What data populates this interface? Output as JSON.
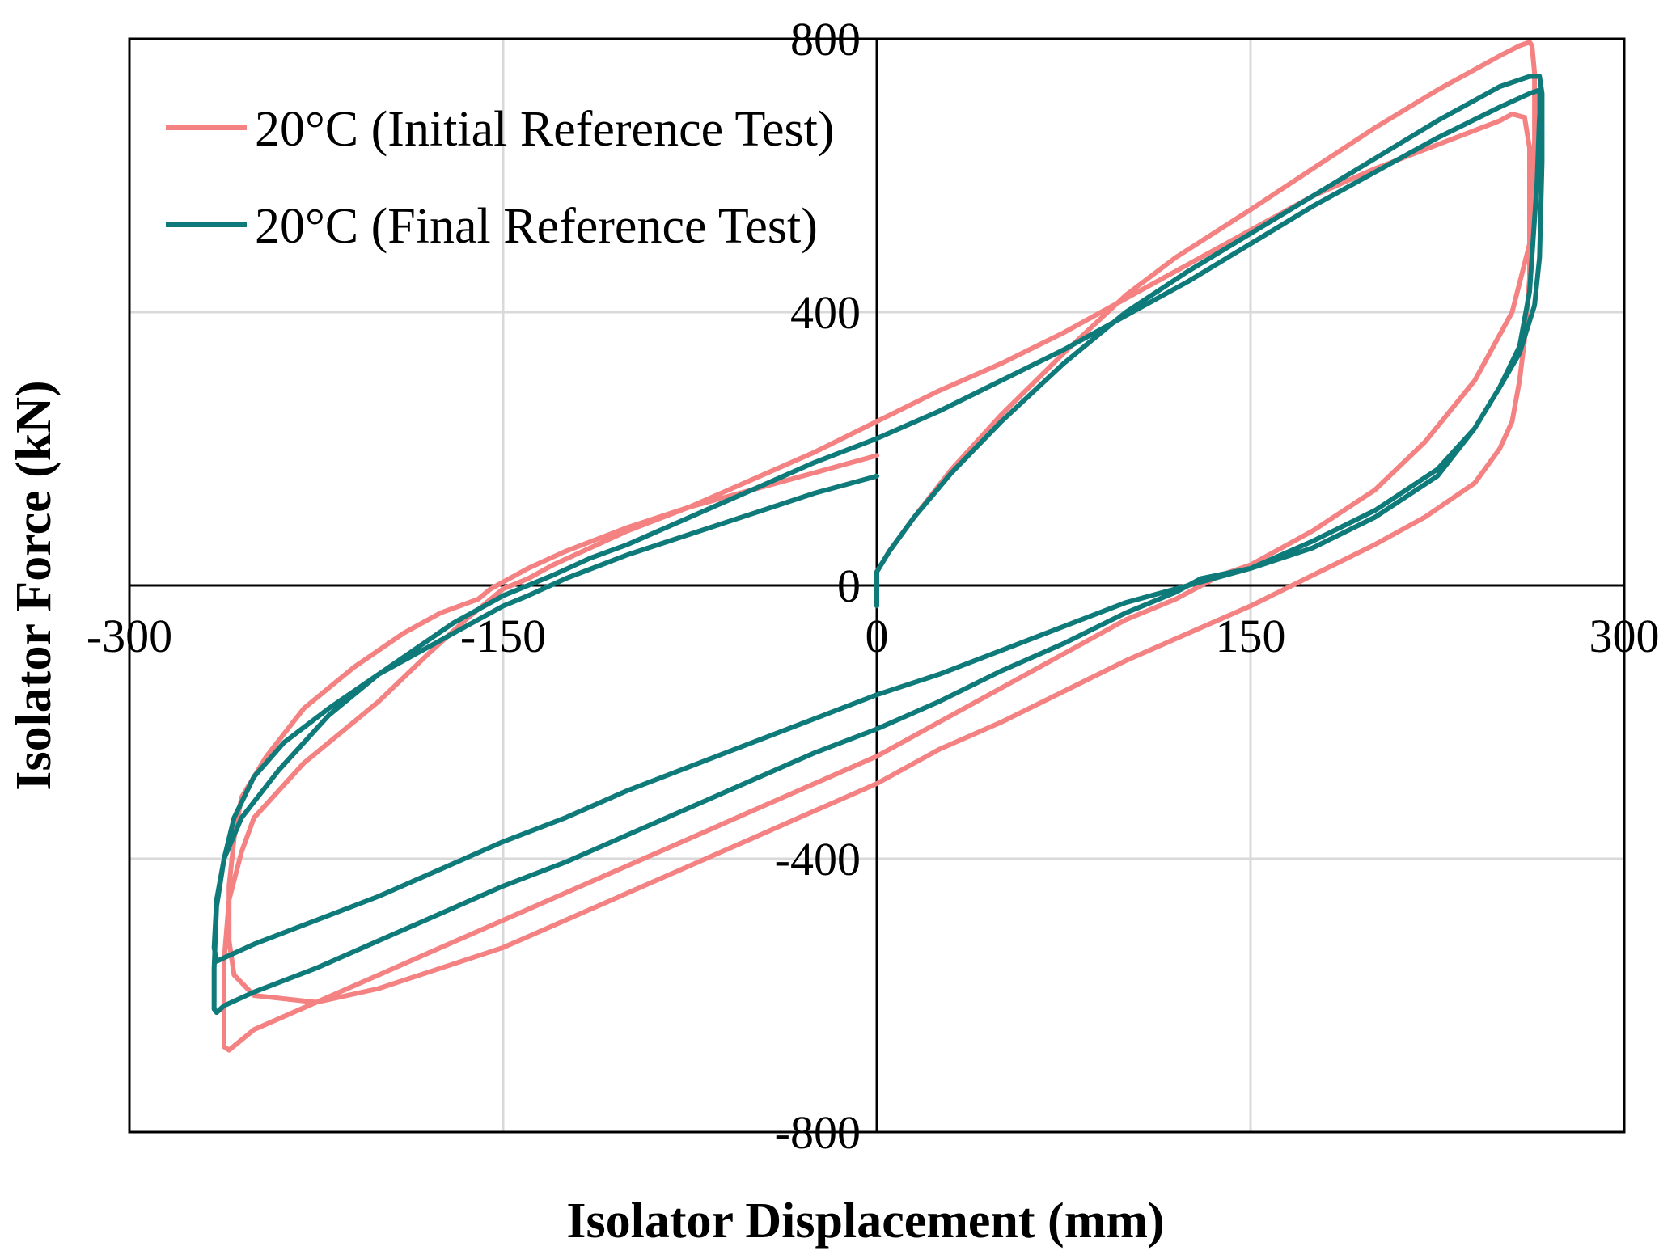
{
  "chart_data": {
    "type": "line",
    "title": "",
    "xlabel": "Isolator Displacement (mm)",
    "ylabel": "Isolator Force (kN)",
    "xlim": [
      -300,
      300
    ],
    "ylim": [
      -800,
      800
    ],
    "xticks": [
      "-300",
      "-150",
      "0",
      "150",
      "300"
    ],
    "xtick_values": [
      -300,
      -150,
      0,
      150,
      300
    ],
    "yticks": [
      "800",
      "400",
      "0",
      "-400",
      "-800"
    ],
    "ytick_values": [
      800,
      400,
      0,
      -400,
      -800
    ],
    "grid": true,
    "legend_position": "top-left",
    "series": [
      {
        "name": "20°C (Initial Reference Test)",
        "color": "#f58282",
        "x": [
          0,
          0,
          5,
          15,
          30,
          50,
          75,
          100,
          120,
          150,
          175,
          200,
          225,
          250,
          258,
          262,
          263,
          264,
          264,
          262,
          255,
          240,
          220,
          200,
          175,
          150,
          138,
          120,
          100,
          75,
          50,
          25,
          0,
          -25,
          -50,
          -75,
          -100,
          -125,
          -150,
          -175,
          -200,
          -225,
          -250,
          -260,
          -262,
          -262,
          -262,
          -260,
          -255,
          -250,
          -230,
          -200,
          -180,
          -165,
          -155,
          -150,
          -140,
          -130,
          -115,
          -100,
          -75,
          -50,
          -25,
          0,
          25,
          50,
          75,
          100,
          125,
          150,
          175,
          200,
          225,
          250,
          255,
          260,
          262,
          262,
          262,
          260,
          258,
          255,
          250,
          240,
          220,
          200,
          175,
          150,
          125,
          100,
          75,
          50,
          25,
          0,
          -25,
          -50,
          -75,
          -100,
          -125,
          -150,
          -175,
          -200,
          -225,
          -250,
          -258,
          -260,
          -260,
          -258,
          -255,
          -245,
          -230,
          -210,
          -190,
          -175,
          -160,
          -155,
          -150,
          -140,
          -125,
          -100,
          -75,
          -50,
          -25,
          0
        ],
        "y": [
          -20,
          20,
          50,
          100,
          170,
          250,
          340,
          425,
          480,
          550,
          610,
          670,
          725,
          775,
          790,
          795,
          790,
          750,
          650,
          500,
          400,
          300,
          210,
          140,
          80,
          30,
          15,
          -20,
          -50,
          -100,
          -150,
          -200,
          -250,
          -290,
          -330,
          -370,
          -410,
          -450,
          -490,
          -530,
          -570,
          -610,
          -650,
          -680,
          -675,
          -640,
          -550,
          -460,
          -390,
          -340,
          -260,
          -170,
          -100,
          -50,
          -20,
          -5,
          10,
          30,
          55,
          80,
          115,
          155,
          195,
          240,
          285,
          325,
          370,
          420,
          470,
          520,
          570,
          610,
          645,
          680,
          690,
          685,
          640,
          560,
          450,
          360,
          300,
          240,
          200,
          150,
          100,
          60,
          15,
          -30,
          -70,
          -110,
          -155,
          -200,
          -240,
          -290,
          -330,
          -370,
          -410,
          -450,
          -490,
          -530,
          -560,
          -590,
          -610,
          -600,
          -570,
          -520,
          -440,
          -370,
          -310,
          -250,
          -180,
          -120,
          -70,
          -40,
          -20,
          -5,
          5,
          25,
          50,
          85,
          115,
          140,
          165,
          190
        ]
      },
      {
        "name": "20°C (Final Reference Test)",
        "color": "#0f7a7a",
        "x": [
          0,
          0,
          5,
          15,
          30,
          50,
          75,
          100,
          125,
          150,
          175,
          200,
          225,
          250,
          262,
          266,
          267,
          267,
          266,
          264,
          258,
          250,
          240,
          225,
          200,
          175,
          150,
          130,
          120,
          100,
          75,
          50,
          25,
          0,
          -25,
          -50,
          -75,
          -100,
          -125,
          -150,
          -175,
          -200,
          -225,
          -250,
          -262,
          -265,
          -266,
          -266,
          -265,
          -262,
          -255,
          -240,
          -220,
          -200,
          -180,
          -170,
          -160,
          -150,
          -140,
          -130,
          -115,
          -100,
          -75,
          -50,
          -25,
          0,
          25,
          50,
          75,
          100,
          125,
          150,
          175,
          200,
          225,
          250,
          262,
          266,
          266,
          265,
          262,
          258,
          250,
          240,
          225,
          200,
          175,
          150,
          125,
          100,
          75,
          50,
          25,
          0,
          -25,
          -50,
          -75,
          -100,
          -125,
          -150,
          -175,
          -200,
          -225,
          -250,
          -262,
          -265,
          -266,
          -265,
          -262,
          -258,
          -250,
          -238,
          -220,
          -200,
          -180,
          -160,
          -150,
          -140,
          -125,
          -100,
          -75,
          -50,
          -25,
          0
        ],
        "y": [
          -30,
          20,
          50,
          100,
          165,
          240,
          325,
          400,
          460,
          515,
          570,
          625,
          680,
          730,
          745,
          745,
          720,
          620,
          480,
          410,
          340,
          290,
          230,
          160,
          100,
          55,
          25,
          10,
          -10,
          -40,
          -85,
          -125,
          -170,
          -210,
          -245,
          -285,
          -325,
          -365,
          -405,
          -440,
          -480,
          -520,
          -560,
          -595,
          -615,
          -625,
          -620,
          -560,
          -470,
          -400,
          -340,
          -270,
          -190,
          -130,
          -80,
          -55,
          -35,
          -15,
          0,
          15,
          40,
          60,
          100,
          140,
          180,
          215,
          255,
          300,
          345,
          395,
          445,
          500,
          555,
          605,
          655,
          700,
          720,
          725,
          690,
          590,
          430,
          350,
          290,
          230,
          170,
          110,
          65,
          25,
          0,
          -25,
          -60,
          -95,
          -130,
          -160,
          -195,
          -230,
          -265,
          -300,
          -340,
          -375,
          -415,
          -455,
          -490,
          -525,
          -545,
          -550,
          -530,
          -460,
          -400,
          -340,
          -280,
          -230,
          -180,
          -130,
          -90,
          -50,
          -30,
          -15,
          10,
          45,
          75,
          105,
          135,
          160
        ]
      }
    ]
  }
}
